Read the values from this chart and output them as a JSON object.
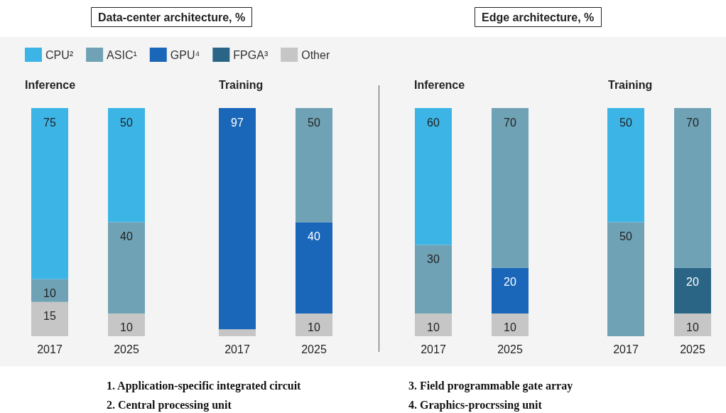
{
  "chart_data": [
    {
      "type": "bar",
      "stacked": true,
      "title": "Data-center architecture, %",
      "subtitle": "Inference",
      "categories": [
        "2017",
        "2025"
      ],
      "ylim": [
        0,
        100
      ],
      "tick_labels": "x",
      "series": [
        {
          "color": "#c6c6c6",
          "values": [
            15,
            10
          ],
          "value_labels": [
            "15",
            "10"
          ]
        },
        {
          "color": "#6fa2b5",
          "values": [
            10,
            40
          ],
          "value_labels": [
            "10",
            "40"
          ]
        },
        {
          "color": "#3cb4e6",
          "values": [
            75,
            50
          ],
          "value_labels": [
            "75",
            "50"
          ]
        }
      ],
      "annotations": [
        "1. Application-specific integrated circuit",
        "2. Central processing unit"
      ]
    },
    {
      "type": "bar",
      "stacked": true,
      "subtitle": "Training",
      "categories": [
        "2017",
        "2025"
      ],
      "ylim": [
        0,
        100
      ],
      "tick_labels": "x",
      "legend": "top left",
      "series": [
        {
          "name": "Other",
          "color": "#c6c6c6",
          "values": [
            3,
            10
          ],
          "value_labels": [
            null,
            "10"
          ]
        },
        {
          "name": "FPGA³",
          "color": "#2b6585",
          "values": [
            null,
            null
          ]
        },
        {
          "name": "GPU⁴",
          "color": "#1a66b8",
          "values": [
            97,
            40
          ],
          "value_labels": [
            "97",
            "40"
          ]
        },
        {
          "name": "ASIC¹",
          "color": "#6fa2b5",
          "values": [
            null,
            50
          ],
          "value_labels": [
            null,
            "50"
          ]
        },
        {
          "name": "CPU²",
          "color": "#3cb4e6",
          "values": [
            null,
            null
          ]
        }
      ]
    },
    {
      "type": "bar",
      "stacked": true,
      "title": "Edge architecture, %",
      "subtitle": "Inference",
      "categories": [
        "2017",
        "2025"
      ],
      "ylim": [
        0,
        100
      ],
      "tick_labels": "x",
      "series": [
        {
          "color": "#c6c6c6",
          "values": [
            10,
            10
          ],
          "value_labels": [
            "10",
            "10"
          ]
        },
        {
          "color": "#1a66b8",
          "values": [
            null,
            20
          ],
          "value_labels": [
            null,
            "20"
          ]
        },
        {
          "color": "#6fa2b5",
          "values": [
            30,
            70
          ],
          "value_labels": [
            "30",
            "70"
          ]
        },
        {
          "color": "#3cb4e6",
          "values": [
            60,
            null
          ],
          "value_labels": [
            "60",
            null
          ]
        }
      ],
      "annotations": [
        "3. Field programmable gate array",
        "4. Graphics-procrssing unit"
      ]
    },
    {
      "type": "bar",
      "stacked": true,
      "subtitle": "Training",
      "categories": [
        "2017",
        "2025"
      ],
      "ylim": [
        0,
        100
      ],
      "tick_labels": "x",
      "series": [
        {
          "color": "#c6c6c6",
          "values": [
            null,
            10
          ],
          "value_labels": [
            null,
            "10"
          ]
        },
        {
          "color": "#2b6585",
          "values": [
            null,
            20
          ],
          "value_labels": [
            null,
            "20"
          ]
        },
        {
          "color": "#6fa2b5",
          "values": [
            50,
            70
          ],
          "value_labels": [
            "50",
            "70"
          ]
        },
        {
          "color": "#3cb4e6",
          "values": [
            50,
            null
          ],
          "value_labels": [
            "50",
            null
          ]
        }
      ]
    }
  ]
}
